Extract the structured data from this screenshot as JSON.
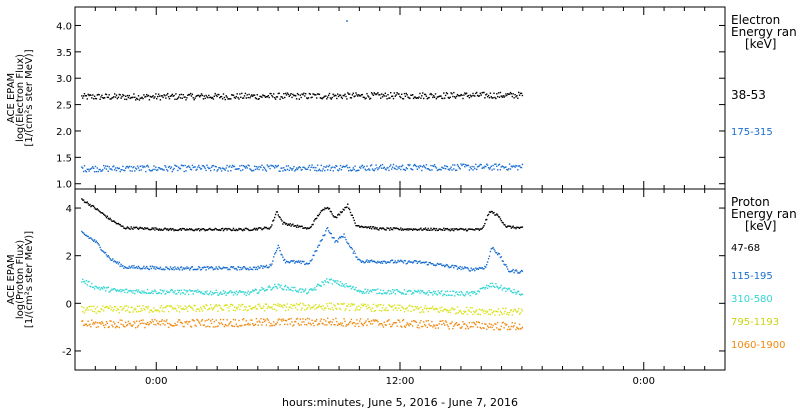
{
  "chart_data": [
    {
      "type": "scatter",
      "panel": "electron",
      "ylabel_lines": [
        "ACE EPAM",
        "log(Electron Flux)",
        "[1/(cm²s ster MeV)]"
      ],
      "ylim": [
        0.9,
        4.35
      ],
      "yticks": [
        1.0,
        1.5,
        2.0,
        2.5,
        3.0,
        3.5,
        4.0
      ],
      "ytick_labels": [
        "1.0",
        "1.5",
        "2.0",
        "2.5",
        "3.0",
        "3.5",
        "4.0"
      ],
      "legend_title": [
        "Electron",
        "Energy ran",
        "[keV]"
      ],
      "series": [
        {
          "name": "38-53",
          "color": "#000000",
          "base": 2.68,
          "noise": 0.06,
          "features": [
            {
              "t": -1.0,
              "v": 2.66
            },
            {
              "t": 18.0,
              "v": 2.69
            }
          ]
        },
        {
          "name": "175-315",
          "color": "#1a6fd1",
          "base": 1.32,
          "noise": 0.06,
          "features": [
            {
              "t": -1.0,
              "v": 1.3
            },
            {
              "t": 18.0,
              "v": 1.33
            }
          ]
        }
      ],
      "outliers": [
        {
          "series": 1,
          "t": 9.35,
          "v": 4.1
        }
      ]
    },
    {
      "type": "scatter",
      "panel": "proton",
      "ylabel_lines": [
        "ACE EPAM",
        "log(Proton Flux)",
        "[1/(cm²s ster MeV)]"
      ],
      "ylim": [
        -2.8,
        4.8
      ],
      "yticks": [
        -2,
        0,
        2,
        4
      ],
      "ytick_labels": [
        "-2",
        "0",
        "2",
        "4"
      ],
      "legend_title": [
        "Proton",
        "Energy ran",
        "[keV]"
      ],
      "series": [
        {
          "name": "47-68",
          "color": "#000000",
          "base": 3.15,
          "noise": 0.05,
          "features": [
            {
              "t": -3.7,
              "v": 4.4
            },
            {
              "t": -3.0,
              "v": 4.0
            },
            {
              "t": -2.3,
              "v": 3.55
            },
            {
              "t": -1.6,
              "v": 3.2
            },
            {
              "t": 1.0,
              "v": 3.12
            },
            {
              "t": 4.5,
              "v": 3.13
            },
            {
              "t": 5.6,
              "v": 3.2
            },
            {
              "t": 5.9,
              "v": 3.9
            },
            {
              "t": 6.2,
              "v": 3.4
            },
            {
              "t": 7.5,
              "v": 3.15
            },
            {
              "t": 8.0,
              "v": 3.8
            },
            {
              "t": 8.4,
              "v": 4.1
            },
            {
              "t": 8.8,
              "v": 3.6
            },
            {
              "t": 9.1,
              "v": 3.9
            },
            {
              "t": 9.4,
              "v": 4.15
            },
            {
              "t": 9.8,
              "v": 3.3
            },
            {
              "t": 11.0,
              "v": 3.15
            },
            {
              "t": 16.0,
              "v": 3.12
            },
            {
              "t": 16.4,
              "v": 3.9
            },
            {
              "t": 16.8,
              "v": 3.7
            },
            {
              "t": 17.2,
              "v": 3.25
            },
            {
              "t": 18.0,
              "v": 3.18
            }
          ]
        },
        {
          "name": "115-195",
          "color": "#1a6fd1",
          "base": 1.6,
          "noise": 0.07,
          "features": [
            {
              "t": -3.7,
              "v": 3.0
            },
            {
              "t": -3.0,
              "v": 2.6
            },
            {
              "t": -2.3,
              "v": 1.9
            },
            {
              "t": -1.6,
              "v": 1.55
            },
            {
              "t": 0.5,
              "v": 1.5
            },
            {
              "t": 4.8,
              "v": 1.5
            },
            {
              "t": 5.6,
              "v": 1.6
            },
            {
              "t": 5.95,
              "v": 2.45
            },
            {
              "t": 6.3,
              "v": 1.8
            },
            {
              "t": 7.5,
              "v": 1.7
            },
            {
              "t": 8.0,
              "v": 2.5
            },
            {
              "t": 8.4,
              "v": 3.2
            },
            {
              "t": 8.8,
              "v": 2.6
            },
            {
              "t": 9.2,
              "v": 2.9
            },
            {
              "t": 9.5,
              "v": 2.4
            },
            {
              "t": 10.0,
              "v": 1.8
            },
            {
              "t": 13.0,
              "v": 1.75
            },
            {
              "t": 15.5,
              "v": 1.45
            },
            {
              "t": 16.2,
              "v": 1.55
            },
            {
              "t": 16.5,
              "v": 2.4
            },
            {
              "t": 16.9,
              "v": 2.0
            },
            {
              "t": 17.3,
              "v": 1.4
            },
            {
              "t": 18.0,
              "v": 1.35
            }
          ]
        },
        {
          "name": "310-580",
          "color": "#33d6d2",
          "base": 0.45,
          "noise": 0.1,
          "features": [
            {
              "t": -3.7,
              "v": 1.0
            },
            {
              "t": -3.0,
              "v": 0.7
            },
            {
              "t": -2.0,
              "v": 0.55
            },
            {
              "t": 4.5,
              "v": 0.45
            },
            {
              "t": 5.9,
              "v": 0.75
            },
            {
              "t": 7.5,
              "v": 0.5
            },
            {
              "t": 8.4,
              "v": 1.0
            },
            {
              "t": 9.2,
              "v": 0.8
            },
            {
              "t": 10.0,
              "v": 0.55
            },
            {
              "t": 15.5,
              "v": 0.42
            },
            {
              "t": 16.5,
              "v": 0.8
            },
            {
              "t": 18.0,
              "v": 0.4
            }
          ]
        },
        {
          "name": "795-1193",
          "color": "#d9e21c",
          "base": -0.3,
          "noise": 0.15,
          "features": [
            {
              "t": -3.7,
              "v": -0.25
            },
            {
              "t": 8.4,
              "v": -0.1
            },
            {
              "t": 18.0,
              "v": -0.35
            }
          ]
        },
        {
          "name": "1060-1900",
          "color": "#f08a10",
          "base": -0.9,
          "noise": 0.17,
          "features": [
            {
              "t": -3.7,
              "v": -0.85
            },
            {
              "t": 8.4,
              "v": -0.75
            },
            {
              "t": 18.0,
              "v": -0.95
            }
          ]
        }
      ]
    }
  ],
  "x_axis": {
    "range_hours": [
      -4.0,
      28.0
    ],
    "data_range_hours": [
      -3.7,
      18.0
    ],
    "ticks_hours": [
      0,
      12,
      24
    ],
    "tick_labels": [
      "0:00",
      "12:00",
      "0:00"
    ],
    "label": "hours:minutes, June  5, 2016 - June  7, 2016"
  }
}
